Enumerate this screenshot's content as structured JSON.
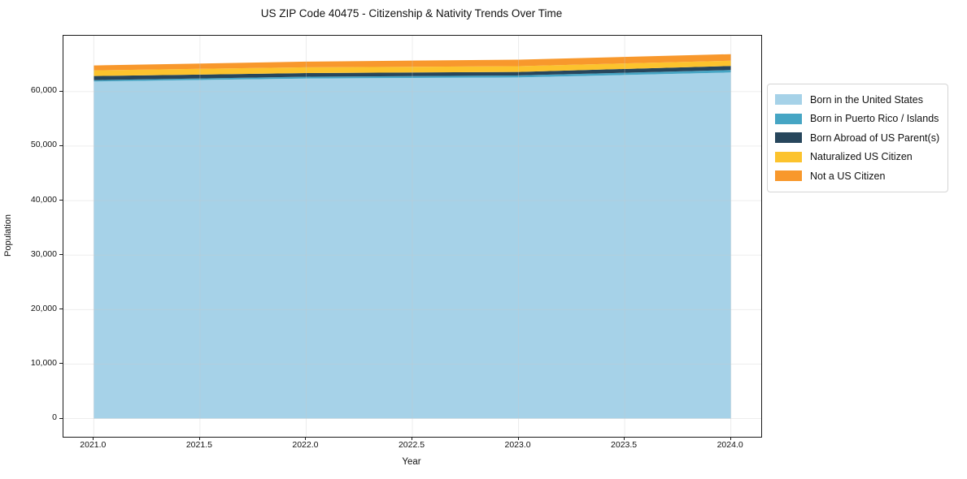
{
  "chart": {
    "title": "US ZIP Code 40475 - Citizenship & Nativity Trends Over Time",
    "xlabel": "Year",
    "ylabel": "Population"
  },
  "chart_data": {
    "type": "area",
    "stacked": true,
    "title": "US ZIP Code 40475 - Citizenship & Nativity Trends Over Time",
    "xlabel": "Year",
    "ylabel": "Population",
    "grid": true,
    "legend_position": "right",
    "x": [
      2021,
      2022,
      2023,
      2024
    ],
    "series": [
      {
        "name": "Born in the United States",
        "color": "#a6d2e8",
        "values": [
          61850,
          62400,
          62600,
          63500
        ]
      },
      {
        "name": "Born in Puerto Rico / Islands",
        "color": "#46a5c4",
        "values": [
          250,
          330,
          360,
          450
        ]
      },
      {
        "name": "Born Abroad of US Parent(s)",
        "color": "#27465c",
        "values": [
          750,
          670,
          650,
          750
        ]
      },
      {
        "name": "Naturalized US Citizen",
        "color": "#fcc32d",
        "values": [
          1050,
          1050,
          1050,
          970
        ]
      },
      {
        "name": "Not a US Citizen",
        "color": "#f8982c",
        "values": [
          900,
          1050,
          1200,
          1200
        ]
      }
    ],
    "xlim": [
      2020.857,
      2024.143
    ],
    "ylim": [
      -3350,
      70250
    ],
    "x_ticks": [
      {
        "value": 2021.0,
        "label": "2021.0"
      },
      {
        "value": 2021.5,
        "label": "2021.5"
      },
      {
        "value": 2022.0,
        "label": "2022.0"
      },
      {
        "value": 2022.5,
        "label": "2022.5"
      },
      {
        "value": 2023.0,
        "label": "2023.0"
      },
      {
        "value": 2023.5,
        "label": "2023.5"
      },
      {
        "value": 2024.0,
        "label": "2024.0"
      }
    ],
    "y_ticks": [
      {
        "value": 0,
        "label": "0"
      },
      {
        "value": 10000,
        "label": "10,000"
      },
      {
        "value": 20000,
        "label": "20,000"
      },
      {
        "value": 30000,
        "label": "30,000"
      },
      {
        "value": 40000,
        "label": "40,000"
      },
      {
        "value": 50000,
        "label": "50,000"
      },
      {
        "value": 60000,
        "label": "60,000"
      }
    ],
    "grid_color": "#c8c8c8",
    "spine_color": "#1a1a1a"
  }
}
